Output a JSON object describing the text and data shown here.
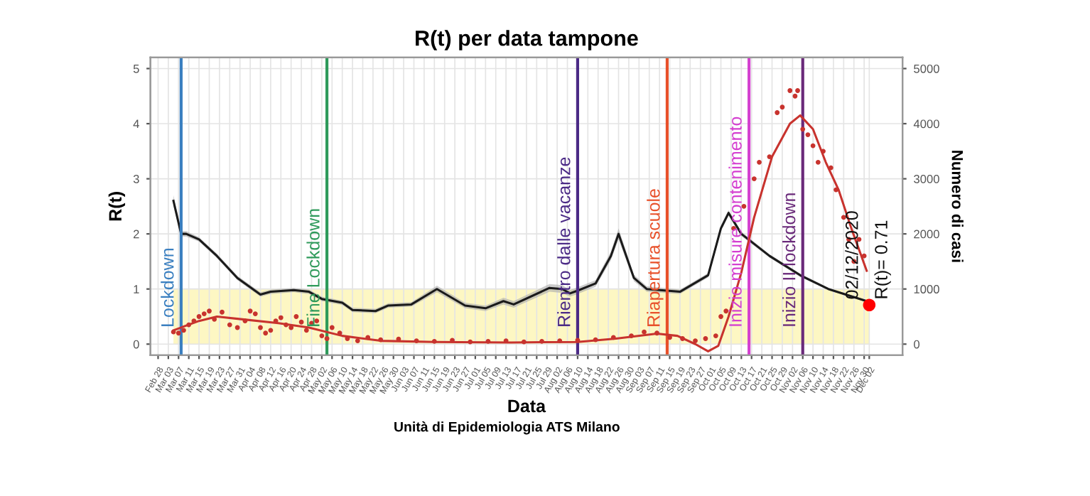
{
  "chart_data": {
    "type": "line",
    "title": "R(t) per data tampone",
    "xlabel": "Data",
    "ylabel": "R(t)",
    "y2label": "Numero di casi",
    "xlim": [
      "2020-02-25",
      "2020-12-15"
    ],
    "ylim": [
      -0.2,
      5.2
    ],
    "yticks": [
      0,
      1,
      2,
      3,
      4,
      5
    ],
    "y2lim": [
      -200,
      5200
    ],
    "y2ticks": [
      0,
      1000,
      2000,
      3000,
      4000,
      5000
    ],
    "xticks": [
      {
        "value": "2020-02-28",
        "label": "Feb 28"
      },
      {
        "value": "2020-03-03",
        "label": "Mar 03"
      },
      {
        "value": "2020-03-07",
        "label": "Mar 07"
      },
      {
        "value": "2020-03-11",
        "label": "Mar 11"
      },
      {
        "value": "2020-03-15",
        "label": "Mar 15"
      },
      {
        "value": "2020-03-19",
        "label": "Mar 19"
      },
      {
        "value": "2020-03-23",
        "label": "Mar 23"
      },
      {
        "value": "2020-03-27",
        "label": "Mar 27"
      },
      {
        "value": "2020-03-31",
        "label": "Mar 31"
      },
      {
        "value": "2020-04-04",
        "label": "Apr 04"
      },
      {
        "value": "2020-04-08",
        "label": "Apr 08"
      },
      {
        "value": "2020-04-12",
        "label": "Apr 12"
      },
      {
        "value": "2020-04-16",
        "label": "Apr 16"
      },
      {
        "value": "2020-04-20",
        "label": "Apr 20"
      },
      {
        "value": "2020-04-24",
        "label": "Apr 24"
      },
      {
        "value": "2020-04-28",
        "label": "Apr 28"
      },
      {
        "value": "2020-05-02",
        "label": "May 02"
      },
      {
        "value": "2020-05-06",
        "label": "May 06"
      },
      {
        "value": "2020-05-10",
        "label": "May 10"
      },
      {
        "value": "2020-05-14",
        "label": "May 14"
      },
      {
        "value": "2020-05-18",
        "label": "May 18"
      },
      {
        "value": "2020-05-22",
        "label": "May 22"
      },
      {
        "value": "2020-05-26",
        "label": "May 26"
      },
      {
        "value": "2020-05-30",
        "label": "May 30"
      },
      {
        "value": "2020-06-03",
        "label": "Jun 03"
      },
      {
        "value": "2020-06-07",
        "label": "Jun 07"
      },
      {
        "value": "2020-06-11",
        "label": "Jun 11"
      },
      {
        "value": "2020-06-15",
        "label": "Jun 15"
      },
      {
        "value": "2020-06-19",
        "label": "Jun 19"
      },
      {
        "value": "2020-06-23",
        "label": "Jun 23"
      },
      {
        "value": "2020-06-27",
        "label": "Jun 27"
      },
      {
        "value": "2020-07-01",
        "label": "Jul 01"
      },
      {
        "value": "2020-07-05",
        "label": "Jul 05"
      },
      {
        "value": "2020-07-09",
        "label": "Jul 09"
      },
      {
        "value": "2020-07-13",
        "label": "Jul 13"
      },
      {
        "value": "2020-07-17",
        "label": "Jul 17"
      },
      {
        "value": "2020-07-21",
        "label": "Jul 21"
      },
      {
        "value": "2020-07-25",
        "label": "Jul 25"
      },
      {
        "value": "2020-07-29",
        "label": "Jul 29"
      },
      {
        "value": "2020-08-02",
        "label": "Aug 02"
      },
      {
        "value": "2020-08-06",
        "label": "Aug 06"
      },
      {
        "value": "2020-08-10",
        "label": "Aug 10"
      },
      {
        "value": "2020-08-14",
        "label": "Aug 14"
      },
      {
        "value": "2020-08-18",
        "label": "Aug 18"
      },
      {
        "value": "2020-08-22",
        "label": "Aug 22"
      },
      {
        "value": "2020-08-26",
        "label": "Aug 26"
      },
      {
        "value": "2020-08-30",
        "label": "Aug 30"
      },
      {
        "value": "2020-09-03",
        "label": "Sep 03"
      },
      {
        "value": "2020-09-07",
        "label": "Sep 07"
      },
      {
        "value": "2020-09-11",
        "label": "Sep 11"
      },
      {
        "value": "2020-09-15",
        "label": "Sep 15"
      },
      {
        "value": "2020-09-19",
        "label": "Sep 19"
      },
      {
        "value": "2020-09-23",
        "label": "Sep 23"
      },
      {
        "value": "2020-09-27",
        "label": "Sep 27"
      },
      {
        "value": "2020-10-01",
        "label": "Oct 01"
      },
      {
        "value": "2020-10-05",
        "label": "Oct 05"
      },
      {
        "value": "2020-10-09",
        "label": "Oct 09"
      },
      {
        "value": "2020-10-13",
        "label": "Oct 13"
      },
      {
        "value": "2020-10-17",
        "label": "Oct 17"
      },
      {
        "value": "2020-10-21",
        "label": "Oct 21"
      },
      {
        "value": "2020-10-25",
        "label": "Oct 25"
      },
      {
        "value": "2020-10-29",
        "label": "Oct 29"
      },
      {
        "value": "2020-11-02",
        "label": "Nov 02"
      },
      {
        "value": "2020-11-06",
        "label": "Nov 06"
      },
      {
        "value": "2020-11-10",
        "label": "Nov 10"
      },
      {
        "value": "2020-11-14",
        "label": "Nov 14"
      },
      {
        "value": "2020-11-18",
        "label": "Nov 18"
      },
      {
        "value": "2020-11-22",
        "label": "Nov 22"
      },
      {
        "value": "2020-11-26",
        "label": "Nov 26"
      },
      {
        "value": "2020-11-30",
        "label": "Nov 30"
      },
      {
        "value": "2020-12-02",
        "label": "Dec 02"
      }
    ],
    "series": [
      {
        "color": "#1a1a1a",
        "x": [
          "2020-03-05",
          "2020-03-08",
          "2020-03-10",
          "2020-03-15",
          "2020-03-22",
          "2020-03-30",
          "2020-04-08",
          "2020-04-12",
          "2020-04-21",
          "2020-04-27",
          "2020-05-02",
          "2020-05-10",
          "2020-05-14",
          "2020-05-23",
          "2020-05-28",
          "2020-06-06",
          "2020-06-16",
          "2020-06-27",
          "2020-07-05",
          "2020-07-12",
          "2020-07-16",
          "2020-07-30",
          "2020-08-04",
          "2020-08-07",
          "2020-08-10",
          "2020-08-17",
          "2020-08-23",
          "2020-08-26",
          "2020-09-01",
          "2020-09-06",
          "2020-09-19",
          "2020-09-30",
          "2020-10-05",
          "2020-10-08",
          "2020-10-13",
          "2020-10-24",
          "2020-11-05",
          "2020-11-16",
          "2020-12-01"
        ],
        "values": [
          2.6,
          2.0,
          2.0,
          1.9,
          1.6,
          1.2,
          0.9,
          0.95,
          0.98,
          0.95,
          0.82,
          0.75,
          0.62,
          0.6,
          0.7,
          0.72,
          1.0,
          0.7,
          0.65,
          0.78,
          0.72,
          1.02,
          1.0,
          0.92,
          0.97,
          1.1,
          1.6,
          2.0,
          1.2,
          1.0,
          0.95,
          1.25,
          2.1,
          2.38,
          2.0,
          1.6,
          1.25,
          1.0,
          0.78
        ],
        "lower": [
          2.5,
          1.95,
          1.95,
          1.86,
          1.56,
          1.16,
          0.86,
          0.91,
          0.94,
          0.91,
          0.78,
          0.71,
          0.58,
          0.56,
          0.66,
          0.68,
          0.94,
          0.65,
          0.6,
          0.72,
          0.66,
          0.95,
          0.93,
          0.86,
          0.91,
          1.04,
          1.52,
          1.9,
          1.14,
          0.95,
          0.91,
          1.21,
          2.05,
          2.33,
          1.96,
          1.57,
          1.22,
          0.98,
          0.76
        ],
        "upper": [
          2.7,
          2.05,
          2.05,
          1.94,
          1.64,
          1.24,
          0.94,
          0.99,
          1.02,
          0.99,
          0.86,
          0.79,
          0.66,
          0.64,
          0.74,
          0.76,
          1.06,
          0.75,
          0.7,
          0.84,
          0.78,
          1.09,
          1.07,
          0.98,
          1.03,
          1.16,
          1.68,
          2.1,
          1.26,
          1.05,
          0.99,
          1.29,
          2.15,
          2.43,
          2.04,
          1.63,
          1.28,
          1.02,
          0.8
        ]
      },
      {
        "type": "scatter",
        "axis": "y2",
        "color": "#c8332e",
        "marker": "circle",
        "x": [
          "2020-03-05",
          "2020-03-07",
          "2020-03-09",
          "2020-03-11",
          "2020-03-13",
          "2020-03-15",
          "2020-03-17",
          "2020-03-19",
          "2020-03-21",
          "2020-03-24",
          "2020-03-27",
          "2020-03-30",
          "2020-04-02",
          "2020-04-04",
          "2020-04-06",
          "2020-04-08",
          "2020-04-10",
          "2020-04-12",
          "2020-04-14",
          "2020-04-16",
          "2020-04-18",
          "2020-04-20",
          "2020-04-22",
          "2020-04-24",
          "2020-04-26",
          "2020-04-28",
          "2020-04-30",
          "2020-05-02",
          "2020-05-04",
          "2020-05-06",
          "2020-05-09",
          "2020-05-12",
          "2020-05-16",
          "2020-05-20",
          "2020-05-25",
          "2020-06-01",
          "2020-06-08",
          "2020-06-15",
          "2020-06-22",
          "2020-06-29",
          "2020-07-06",
          "2020-07-13",
          "2020-07-20",
          "2020-07-27",
          "2020-08-03",
          "2020-08-10",
          "2020-08-17",
          "2020-08-24",
          "2020-08-31",
          "2020-09-05",
          "2020-09-10",
          "2020-09-15",
          "2020-09-20",
          "2020-09-25",
          "2020-09-29",
          "2020-10-03",
          "2020-10-05",
          "2020-10-07",
          "2020-10-10",
          "2020-10-14",
          "2020-10-18",
          "2020-10-20",
          "2020-10-24",
          "2020-10-27",
          "2020-10-29",
          "2020-11-01",
          "2020-11-03",
          "2020-11-04",
          "2020-11-06",
          "2020-11-08",
          "2020-11-10",
          "2020-11-12",
          "2020-11-14",
          "2020-11-17",
          "2020-11-19",
          "2020-11-22",
          "2020-11-24",
          "2020-11-26",
          "2020-11-28",
          "2020-11-30"
        ],
        "values": [
          220,
          200,
          250,
          350,
          420,
          500,
          550,
          600,
          450,
          580,
          350,
          300,
          420,
          600,
          550,
          300,
          200,
          250,
          420,
          480,
          350,
          300,
          500,
          400,
          250,
          380,
          420,
          150,
          100,
          300,
          200,
          100,
          60,
          120,
          80,
          90,
          60,
          50,
          70,
          40,
          50,
          60,
          40,
          50,
          60,
          70,
          80,
          120,
          150,
          220,
          200,
          120,
          100,
          60,
          100,
          150,
          500,
          600,
          2100,
          2500,
          3000,
          3300,
          3400,
          4200,
          4300,
          4600,
          4500,
          4600,
          3900,
          3800,
          3600,
          3300,
          3500,
          3200,
          2800,
          2300,
          1900,
          1500,
          1900,
          1600
        ]
      },
      {
        "axis": "y2",
        "color": "#c8332e",
        "x": [
          "2020-03-05",
          "2020-03-15",
          "2020-03-22",
          "2020-04-01",
          "2020-04-15",
          "2020-04-27",
          "2020-05-10",
          "2020-05-25",
          "2020-06-15",
          "2020-07-15",
          "2020-08-10",
          "2020-08-25",
          "2020-09-10",
          "2020-09-18",
          "2020-09-25",
          "2020-09-30",
          "2020-10-04",
          "2020-10-08",
          "2020-10-13",
          "2020-10-18",
          "2020-10-25",
          "2020-11-01",
          "2020-11-05",
          "2020-11-10",
          "2020-11-15",
          "2020-11-20",
          "2020-11-25",
          "2020-12-01"
        ],
        "values": [
          250,
          420,
          500,
          450,
          380,
          300,
          150,
          60,
          40,
          30,
          40,
          100,
          190,
          150,
          0,
          -130,
          -30,
          500,
          1300,
          2300,
          3400,
          4000,
          4150,
          3900,
          3300,
          2800,
          2100,
          1330
        ]
      },
      {
        "type": "scatter",
        "color": "#ff0000",
        "marker": "circle",
        "x": [
          "2020-12-02"
        ],
        "values": [
          0.71
        ]
      }
    ],
    "bands": [
      {
        "axis": "y",
        "from": 0,
        "to": 1,
        "color": "#fdf7c3"
      }
    ],
    "ref_lines": [
      {
        "axis": "x",
        "value": "2020-03-08",
        "label": "Lockdown",
        "color": "#3a7fc0"
      },
      {
        "axis": "x",
        "value": "2020-05-04",
        "label": "Fine Lockdown",
        "color": "#2e9a5a"
      },
      {
        "axis": "x",
        "value": "2020-08-10",
        "label": "Rientro dalle vacanze",
        "color": "#4b2a86"
      },
      {
        "axis": "x",
        "value": "2020-09-14",
        "label": "Riapertura scuole",
        "color": "#e8502a"
      },
      {
        "axis": "x",
        "value": "2020-10-16",
        "label": "Inizio misure contenimento",
        "color": "#d43fd0"
      },
      {
        "axis": "x",
        "value": "2020-11-06",
        "label": "Inizio II lockdown",
        "color": "#6a2a7a"
      }
    ],
    "annotations": [
      {
        "text": "02/12/2020",
        "x": "2020-12-02",
        "y": 0.71
      },
      {
        "text": "R(t)= 0.71",
        "x": "2020-12-02",
        "y": 0.71
      },
      "Unità di Epidemiologia ATS Milano"
    ],
    "grid": true
  }
}
